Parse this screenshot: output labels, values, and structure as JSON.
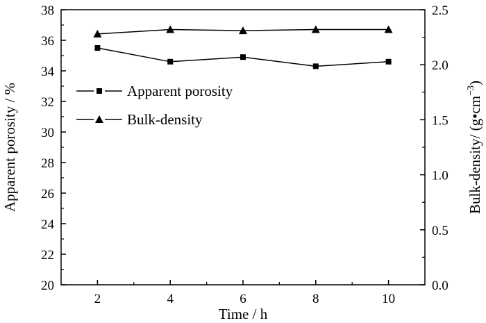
{
  "chart_data": {
    "type": "line",
    "title": "",
    "xlabel": "Time / h",
    "ylabel_left": "Apparent porosity / %",
    "ylabel_right_main": "Bulk-density/ (g•cm",
    "ylabel_right_sup": "−3",
    "ylabel_right_close": ")",
    "xlim": [
      1,
      11
    ],
    "ylim_left": [
      20,
      38
    ],
    "ylim_right": [
      0.0,
      2.5
    ],
    "grid": false,
    "legend_position": "middle-left",
    "x_ticks": [
      2,
      4,
      6,
      8,
      10
    ],
    "x_tick_labels": [
      "2",
      "4",
      "6",
      "8",
      "10"
    ],
    "y_left_ticks": [
      20,
      22,
      24,
      26,
      28,
      30,
      32,
      34,
      36,
      38
    ],
    "y_left_tick_labels": [
      "20",
      "22",
      "24",
      "26",
      "28",
      "30",
      "32",
      "34",
      "36",
      "38"
    ],
    "y_right_ticks": [
      0.0,
      0.5,
      1.0,
      1.5,
      2.0,
      2.5
    ],
    "y_right_tick_labels": [
      "0.0",
      "0.5",
      "1.0",
      "1.5",
      "2.0",
      "2.5"
    ],
    "x": [
      2,
      4,
      6,
      8,
      10
    ],
    "series": [
      {
        "name": "Apparent porosity",
        "axis": "left",
        "marker": "square",
        "values": [
          35.5,
          34.6,
          34.9,
          34.3,
          34.6
        ]
      },
      {
        "name": "Bulk-density",
        "axis": "right",
        "marker": "triangle",
        "values": [
          2.28,
          2.32,
          2.31,
          2.32,
          2.32
        ]
      }
    ]
  }
}
